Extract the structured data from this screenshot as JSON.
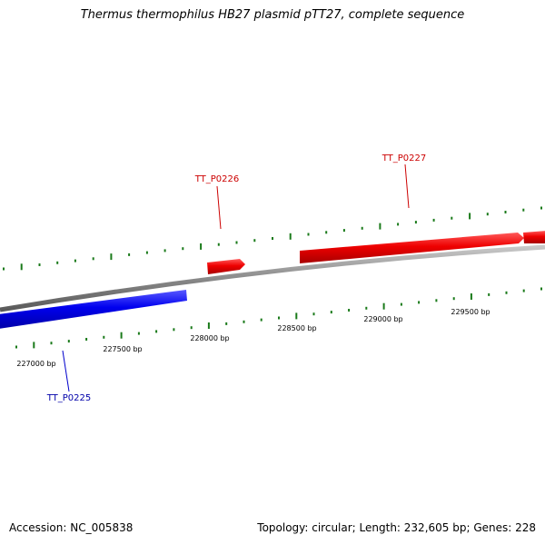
{
  "title": "Thermus thermophilus HB27 plasmid pTT27, complete sequence",
  "accession": "Accession: NC_005838",
  "summary": "Topology: circular; Length: 232,605 bp; Genes: 228",
  "colors": {
    "backbone": "#808080",
    "forward_gene": "#ff0000",
    "reverse_gene": "#0000ff",
    "ticks": "#1a7a1a"
  },
  "scale_labels": [
    "227000 bp",
    "227500 bp",
    "228000 bp",
    "228500 bp",
    "229000 bp",
    "229500 bp"
  ],
  "genes": [
    {
      "name": "TT_P0225",
      "strand": "reverse"
    },
    {
      "name": "TT_P0226",
      "strand": "forward"
    },
    {
      "name": "TT_P0227",
      "strand": "forward"
    }
  ]
}
